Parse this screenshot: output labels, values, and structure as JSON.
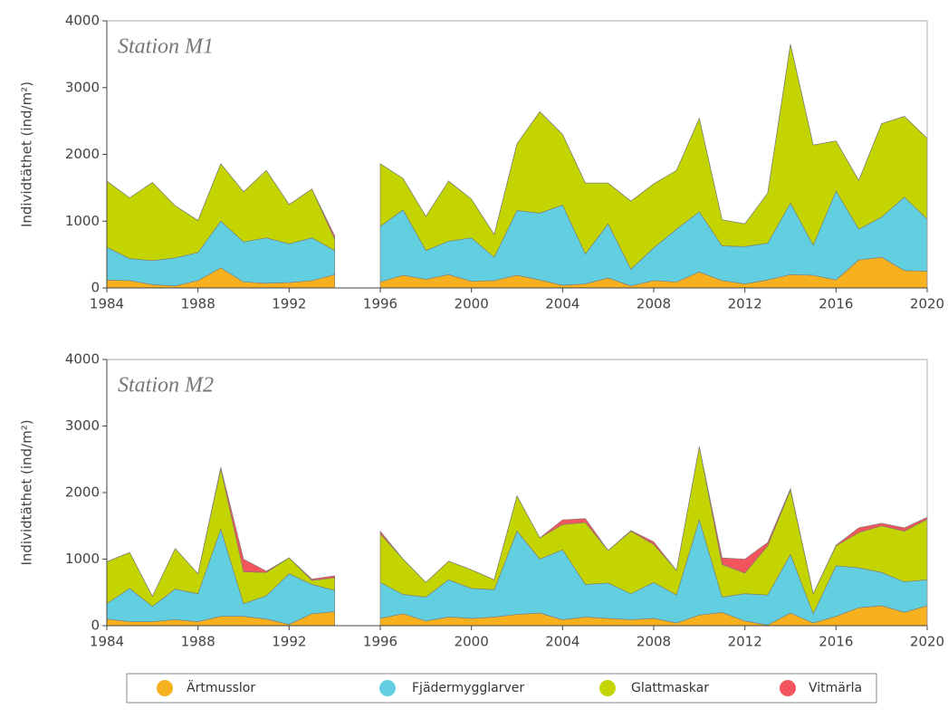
{
  "chart_data": [
    {
      "type": "stacked_area",
      "title": "Station M1",
      "ylabel": "Individtäthet (ind/m²)",
      "x": [
        1984,
        1985,
        1986,
        1987,
        1988,
        1989,
        1990,
        1991,
        1992,
        1993,
        1994,
        1995,
        1996,
        1997,
        1998,
        1999,
        2000,
        2001,
        2002,
        2003,
        2004,
        2005,
        2006,
        2007,
        2008,
        2009,
        2010,
        2011,
        2012,
        2013,
        2014,
        2015,
        2016,
        2017,
        2018,
        2019,
        2020
      ],
      "xlim": [
        1984,
        2020
      ],
      "xticks": [
        1984,
        1988,
        1992,
        1996,
        2000,
        2004,
        2008,
        2012,
        2016,
        2020
      ],
      "ylim": [
        0,
        4000
      ],
      "yticks": [
        0,
        1000,
        2000,
        3000,
        4000
      ],
      "series": [
        {
          "name": "Ärtmusslor",
          "color": "#f7b01e",
          "values": [
            120,
            110,
            50,
            30,
            110,
            300,
            90,
            70,
            80,
            110,
            200,
            null,
            90,
            190,
            130,
            200,
            100,
            110,
            190,
            120,
            40,
            60,
            150,
            30,
            110,
            90,
            240,
            110,
            60,
            120,
            200,
            190,
            120,
            420,
            460,
            260,
            250
          ]
        },
        {
          "name": "Fjädermygglarver",
          "color": "#62cfe0",
          "values": [
            490,
            330,
            360,
            420,
            420,
            700,
            600,
            680,
            580,
            640,
            360,
            null,
            830,
            980,
            430,
            500,
            650,
            350,
            970,
            1000,
            1200,
            450,
            810,
            250,
            490,
            790,
            900,
            520,
            560,
            550,
            1070,
            450,
            1330,
            460,
            600,
            1100,
            780
          ]
        },
        {
          "name": "Glattmaskar",
          "color": "#c3d400",
          "values": [
            990,
            910,
            1170,
            780,
            480,
            860,
            750,
            1010,
            590,
            730,
            170,
            null,
            940,
            470,
            510,
            900,
            580,
            340,
            1000,
            1520,
            1060,
            1060,
            610,
            1020,
            960,
            880,
            1400,
            390,
            340,
            750,
            2380,
            1500,
            750,
            730,
            1400,
            1210,
            1210
          ]
        },
        {
          "name": "Vitmärla",
          "color": "#f2555c",
          "values": [
            0,
            0,
            0,
            0,
            0,
            0,
            0,
            0,
            0,
            0,
            50,
            null,
            0,
            0,
            0,
            0,
            0,
            0,
            0,
            0,
            0,
            0,
            0,
            0,
            0,
            0,
            0,
            0,
            0,
            0,
            0,
            0,
            0,
            0,
            0,
            0,
            0
          ]
        }
      ]
    },
    {
      "type": "stacked_area",
      "title": "Station M2",
      "ylabel": "Individtäthet (ind/m²)",
      "x": [
        1984,
        1985,
        1986,
        1987,
        1988,
        1989,
        1990,
        1991,
        1992,
        1993,
        1994,
        1995,
        1996,
        1997,
        1998,
        1999,
        2000,
        2001,
        2002,
        2003,
        2004,
        2005,
        2006,
        2007,
        2008,
        2009,
        2010,
        2011,
        2012,
        2013,
        2014,
        2015,
        2016,
        2017,
        2018,
        2019,
        2020
      ],
      "xlim": [
        1984,
        2020
      ],
      "xticks": [
        1984,
        1988,
        1992,
        1996,
        2000,
        2004,
        2008,
        2012,
        2016,
        2020
      ],
      "ylim": [
        0,
        4000
      ],
      "yticks": [
        0,
        1000,
        2000,
        3000,
        4000
      ],
      "series": [
        {
          "name": "Ärtmusslor",
          "color": "#f7b01e",
          "values": [
            100,
            60,
            60,
            90,
            60,
            140,
            140,
            100,
            20,
            180,
            210,
            null,
            110,
            180,
            70,
            130,
            110,
            130,
            170,
            190,
            90,
            130,
            110,
            90,
            110,
            40,
            160,
            200,
            70,
            10,
            190,
            40,
            140,
            270,
            300,
            200,
            300
          ]
        },
        {
          "name": "Fjädermygglarver",
          "color": "#62cfe0",
          "values": [
            230,
            500,
            230,
            460,
            420,
            1310,
            190,
            350,
            760,
            440,
            320,
            null,
            540,
            290,
            360,
            560,
            450,
            410,
            1250,
            810,
            1050,
            490,
            530,
            390,
            540,
            420,
            1430,
            230,
            410,
            450,
            880,
            140,
            760,
            600,
            500,
            460,
            390
          ]
        },
        {
          "name": "Glattmaskar",
          "color": "#c3d400",
          "values": [
            630,
            540,
            150,
            610,
            300,
            910,
            480,
            350,
            240,
            60,
            190,
            null,
            730,
            530,
            220,
            280,
            280,
            150,
            530,
            320,
            380,
            930,
            490,
            940,
            570,
            370,
            1100,
            490,
            310,
            740,
            970,
            300,
            300,
            530,
            700,
            760,
            910
          ]
        },
        {
          "name": "Vitmärla",
          "color": "#f2555c",
          "values": [
            0,
            0,
            0,
            0,
            0,
            20,
            190,
            20,
            0,
            20,
            30,
            null,
            40,
            0,
            0,
            0,
            0,
            0,
            0,
            0,
            70,
            60,
            0,
            10,
            40,
            0,
            0,
            100,
            210,
            50,
            20,
            0,
            10,
            70,
            40,
            50,
            30
          ]
        }
      ]
    }
  ]
}
